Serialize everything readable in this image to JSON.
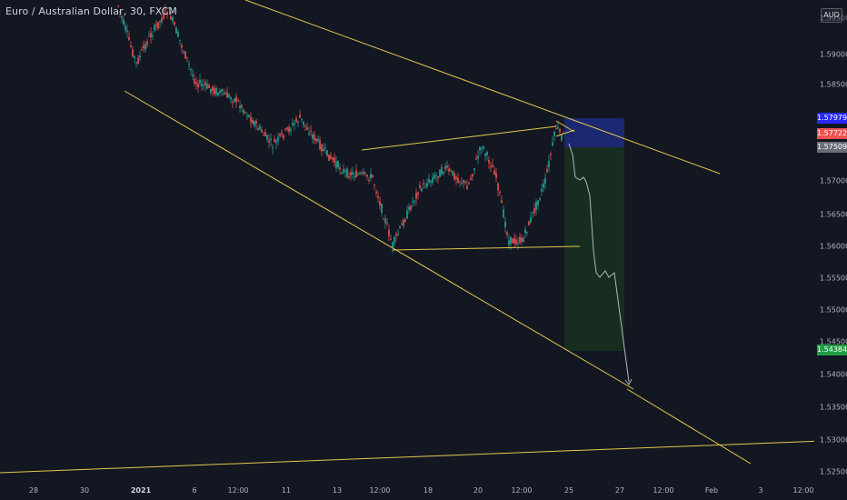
{
  "header": {
    "symbol_title": "Euro / Australian Dollar, 30, FXCM",
    "currency_button": "AUD"
  },
  "colors": {
    "background": "#131722",
    "trendline": "#e2c84d",
    "candle_up": "#26a69a",
    "candle_down": "#ef5350",
    "projection": "#b2b5be",
    "stop_zone": "#1f2a80",
    "target_zone": "#17301f",
    "tag_stop": "#2929ff",
    "tag_current": "#ef5350",
    "tag_entry": "#6a6d78",
    "tag_target": "#1e9e44"
  },
  "price_axis": {
    "labels": [
      "1.59500",
      "1.59000",
      "1.58500",
      "1.57000",
      "1.56500",
      "1.56000",
      "1.55500",
      "1.55000",
      "1.54500",
      "1.54000",
      "1.53500",
      "1.53000",
      "1.52500"
    ]
  },
  "price_tags": {
    "stop": "1.57979",
    "current": "1.57722",
    "entry": "1.57509",
    "target": "1.54384"
  },
  "time_axis": {
    "labels": [
      "28",
      "30",
      "2021",
      "6",
      "12:00",
      "11",
      "13",
      "12:00",
      "18",
      "20",
      "12:00",
      "25",
      "27",
      "12:00",
      "Feb",
      "3",
      "12:00"
    ]
  },
  "chart_data": {
    "type": "candlestick",
    "symbol": "Euro / Australian Dollar",
    "interval": "30",
    "source": "FXCM",
    "ylim": [
      1.5235,
      1.5995
    ],
    "price_levels": {
      "stop": 1.57979,
      "current": 1.57722,
      "entry": 1.57509,
      "target": 1.54384
    },
    "price_path_highs_lows": [
      [
        1.599,
        1.587
      ],
      [
        1.5985,
        1.584
      ],
      [
        1.589,
        1.582
      ],
      [
        1.585,
        1.579
      ],
      [
        1.581,
        1.574
      ],
      [
        1.579,
        1.572
      ],
      [
        1.576,
        1.569
      ],
      [
        1.573,
        1.565
      ],
      [
        1.568,
        1.56
      ],
      [
        1.571,
        1.562
      ],
      [
        1.5745,
        1.568
      ],
      [
        1.573,
        1.568
      ],
      [
        1.576,
        1.57
      ],
      [
        1.572,
        1.565
      ],
      [
        1.566,
        1.56
      ],
      [
        1.57,
        1.56
      ],
      [
        1.574,
        1.566
      ],
      [
        1.58,
        1.575
      ]
    ]
  }
}
